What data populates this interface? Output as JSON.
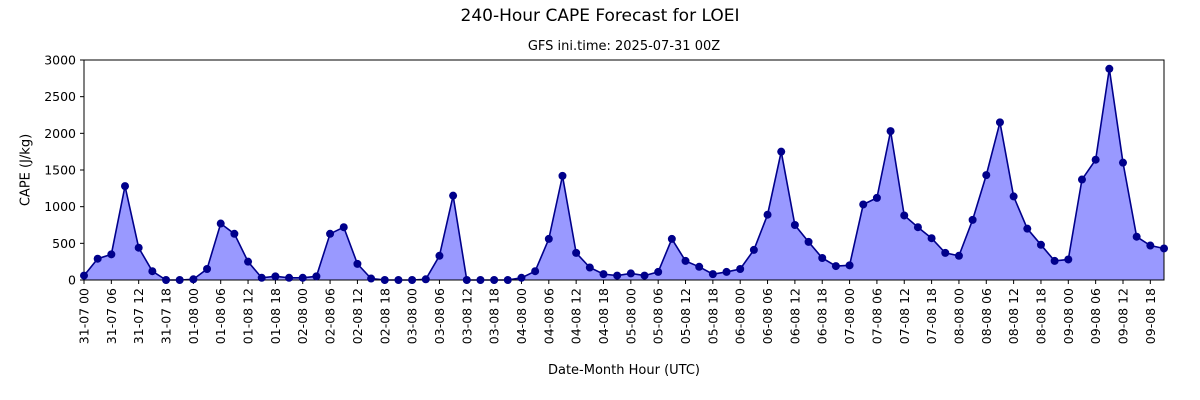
{
  "chart_data": {
    "type": "area",
    "title": "240-Hour CAPE Forecast for LOEI",
    "subtitle": "GFS ini.time: 2025-07-31 00Z",
    "xlabel": "Date-Month Hour (UTC)",
    "ylabel": "CAPE (J/kg)",
    "ylim": [
      0,
      3000
    ],
    "yticks": [
      0,
      500,
      1000,
      1500,
      2000,
      2500,
      3000
    ],
    "step_hours": 3,
    "x_tick_every": 2,
    "xtick_labels": [
      "31-07 00",
      "31-07 06",
      "31-07 12",
      "31-07 18",
      "01-08 00",
      "01-08 06",
      "01-08 12",
      "01-08 18",
      "02-08 00",
      "02-08 06",
      "02-08 12",
      "02-08 18",
      "03-08 00",
      "03-08 06",
      "03-08 12",
      "03-08 18",
      "04-08 00",
      "04-08 06",
      "04-08 12",
      "04-08 18",
      "05-08 00",
      "05-08 06",
      "05-08 12",
      "05-08 18",
      "06-08 00",
      "06-08 06",
      "06-08 12",
      "06-08 18",
      "07-08 00",
      "07-08 06",
      "07-08 12",
      "07-08 18",
      "08-08 00",
      "08-08 06",
      "08-08 12",
      "08-08 18",
      "09-08 00",
      "09-08 06",
      "09-08 12",
      "09-08 18"
    ],
    "values": [
      60,
      290,
      350,
      1280,
      440,
      120,
      0,
      0,
      10,
      150,
      770,
      630,
      250,
      30,
      50,
      30,
      30,
      50,
      630,
      720,
      220,
      20,
      0,
      0,
      0,
      10,
      330,
      1150,
      0,
      0,
      0,
      0,
      30,
      120,
      560,
      1420,
      370,
      170,
      80,
      60,
      90,
      60,
      110,
      560,
      260,
      180,
      80,
      110,
      150,
      410,
      890,
      1750,
      750,
      520,
      300,
      190,
      200,
      1030,
      1120,
      2030,
      880,
      720,
      570,
      370,
      330,
      820,
      1430,
      2150,
      1140,
      700,
      480,
      260,
      280,
      1370,
      1640,
      2880,
      1600,
      590,
      470,
      430
    ],
    "fill_color": "#9999ff",
    "line_color": "#00008b",
    "grid": false,
    "legend": "none"
  }
}
